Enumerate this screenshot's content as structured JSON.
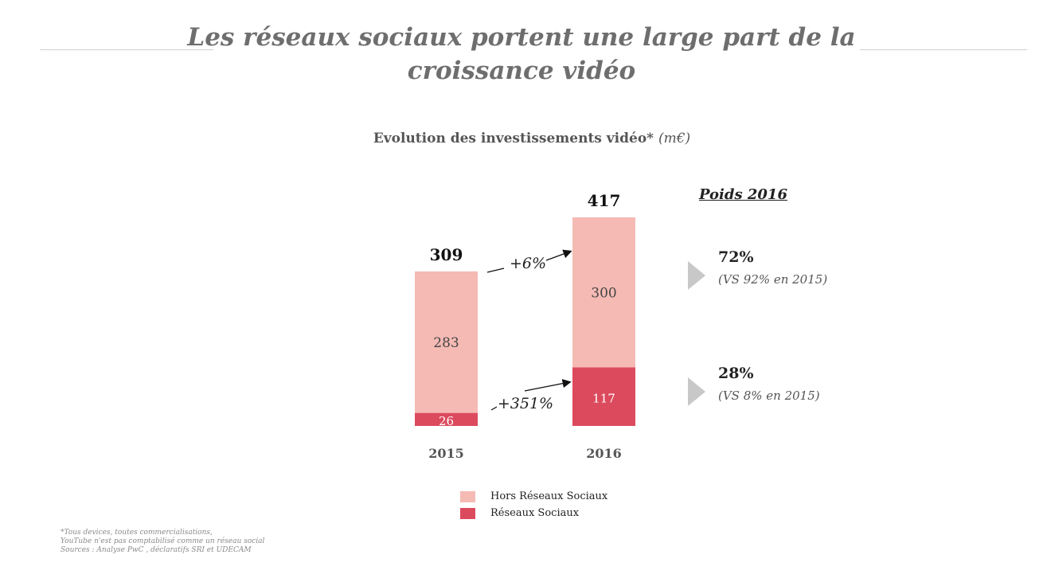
{
  "slide": {
    "title_line1": "Les réseaux sociaux portent une large part de la",
    "title_line2": "croissance vidéo"
  },
  "colors": {
    "hors_reseaux": "#f5bab4",
    "reseaux": "#dc4a5e",
    "triangle": "#c8c8c8"
  },
  "chart_data": {
    "type": "bar",
    "stacked": true,
    "title": "Evolution des investissements vidéo*",
    "unit": "(m€)",
    "categories": [
      "2015",
      "2016"
    ],
    "series": [
      {
        "name": "Réseaux Sociaux",
        "values": [
          26,
          117
        ],
        "color": "#dc4a5e"
      },
      {
        "name": "Hors Réseaux Sociaux",
        "values": [
          283,
          300
        ],
        "color": "#f5bab4"
      }
    ],
    "totals": [
      309,
      417
    ],
    "growth_annotations": [
      {
        "series": "Hors Réseaux Sociaux",
        "label": "+6%"
      },
      {
        "series": "Réseaux Sociaux",
        "label": "+351%"
      }
    ],
    "ylim": [
      0,
      417
    ],
    "grid": false,
    "legend_position": "bottom"
  },
  "poids": {
    "title": "Poids 2016",
    "items": [
      {
        "value": "72%",
        "note": "(VS 92% en 2015)"
      },
      {
        "value": "28%",
        "note": "(VS 8% en 2015)"
      }
    ]
  },
  "footnote": {
    "line1": "*Tous devices, toutes commercialisations,",
    "line2": "YouTube n'est pas comptabilisé comme un réseau social",
    "line3": "Sources : Analyse PwC , déclaratifs SRI et UDECAM"
  }
}
